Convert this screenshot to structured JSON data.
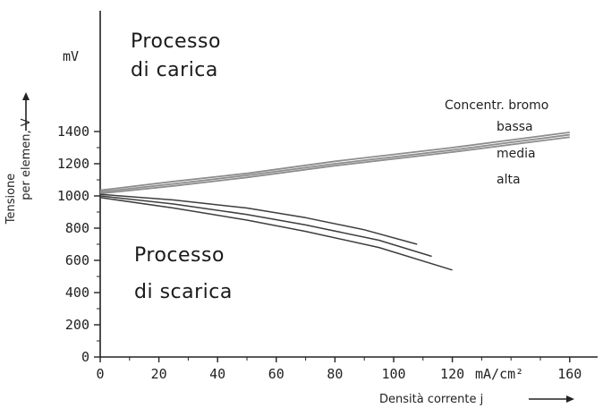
{
  "chart_data": {
    "type": "line",
    "title": "",
    "xlabel": "Densità corrente j",
    "ylabel_line1": "Tensione",
    "ylabel_line2": "per elemen, V",
    "x_unit": "mA/cm²",
    "y_unit": "mV",
    "xlim": [
      0,
      170
    ],
    "ylim": [
      0,
      1450
    ],
    "x_ticks": [
      "0",
      "20",
      "40",
      "60",
      "80",
      "100",
      "120",
      "160"
    ],
    "y_ticks": [
      "0",
      "200",
      "400",
      "600",
      "800",
      "1000",
      "1200",
      "1400"
    ],
    "legend_title": "Concentr. bromo",
    "legend_items": [
      "bassa",
      "media",
      "alta"
    ],
    "annotations": {
      "charge": [
        "Processo",
        "di carica"
      ],
      "discharge": [
        "Processo",
        "di scarica"
      ]
    },
    "series": [
      {
        "group": "charge",
        "x": [
          0,
          25,
          50,
          80,
          120,
          160
        ],
        "y": [
          1035,
          1090,
          1140,
          1215,
          1300,
          1395
        ]
      },
      {
        "group": "charge",
        "x": [
          0,
          25,
          50,
          80,
          120,
          160
        ],
        "y": [
          1025,
          1075,
          1128,
          1200,
          1285,
          1380
        ]
      },
      {
        "group": "charge",
        "x": [
          0,
          25,
          50,
          80,
          120,
          160
        ],
        "y": [
          1015,
          1062,
          1115,
          1188,
          1272,
          1365
        ]
      },
      {
        "group": "discharge",
        "x": [
          0,
          25,
          50,
          70,
          90,
          108
        ],
        "y": [
          1010,
          975,
          925,
          865,
          790,
          700
        ]
      },
      {
        "group": "discharge",
        "x": [
          0,
          25,
          50,
          70,
          95,
          113
        ],
        "y": [
          1000,
          950,
          885,
          820,
          725,
          625
        ]
      },
      {
        "group": "discharge",
        "x": [
          0,
          25,
          50,
          70,
          95,
          120
        ],
        "y": [
          990,
          925,
          850,
          780,
          680,
          540
        ]
      }
    ]
  }
}
